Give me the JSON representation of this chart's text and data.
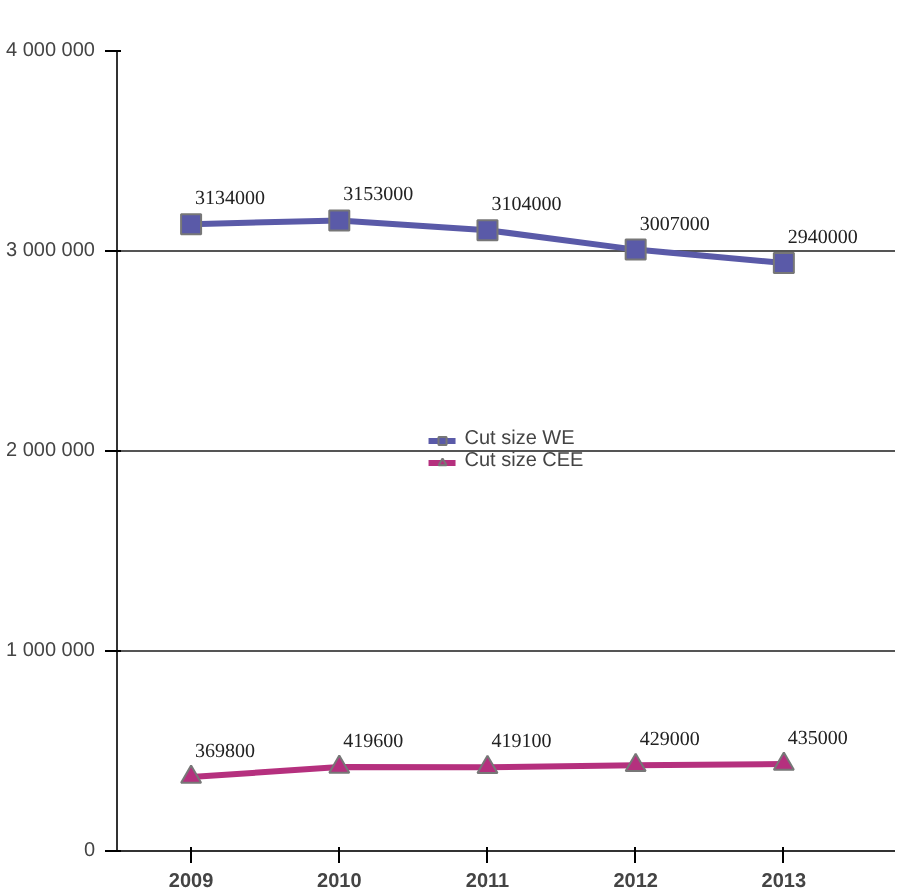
{
  "chart_data": {
    "type": "line",
    "categories": [
      "2009",
      "2010",
      "2011",
      "2012",
      "2013"
    ],
    "series": [
      {
        "name": "Cut size WE",
        "color": "#5a5aa8",
        "marker": "square",
        "values": [
          3134000,
          3153000,
          3104000,
          3007000,
          2940000
        ]
      },
      {
        "name": "Cut size CEE",
        "color": "#b5307e",
        "marker": "triangle",
        "values": [
          369800,
          419600,
          419100,
          429000,
          435000
        ]
      }
    ],
    "ylim": [
      0,
      4000000
    ],
    "yticks": [
      {
        "value": 0,
        "label": "0"
      },
      {
        "value": 1000000,
        "label": "1 000 000"
      },
      {
        "value": 2000000,
        "label": "2 000 000"
      },
      {
        "value": 3000000,
        "label": "3 000 000"
      },
      {
        "value": 4000000,
        "label": "4 000 000"
      }
    ],
    "grid": "y",
    "legend": "center",
    "data_labels": true,
    "line_style": "solid"
  }
}
